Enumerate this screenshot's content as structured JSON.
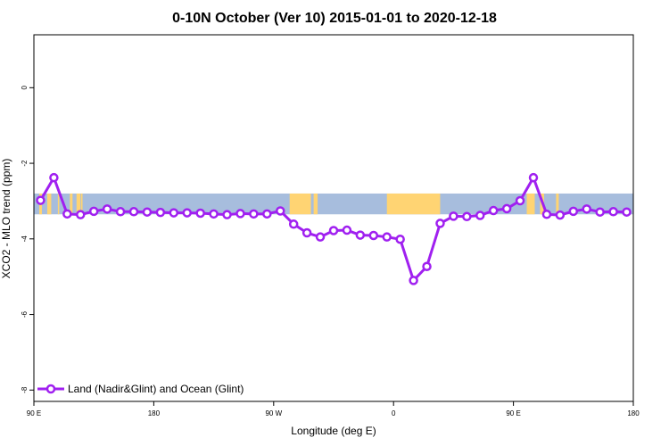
{
  "chart_data": {
    "type": "line",
    "title": "0-10N October (Ver 10)   2015-01-01 to 2020-12-18",
    "xlabel": "Longitude (deg E)",
    "ylabel": "XCO2 - MLO trend (ppm)",
    "xlim": [
      90,
      540
    ],
    "ylim": [
      -8.3,
      1.4
    ],
    "xticks": [
      {
        "value": 90,
        "label": "90 E"
      },
      {
        "value": 180,
        "label": "180"
      },
      {
        "value": 270,
        "label": "90 W"
      },
      {
        "value": 360,
        "label": "0"
      },
      {
        "value": 450,
        "label": "90 E"
      },
      {
        "value": 540,
        "label": "180"
      }
    ],
    "yticks": [
      0,
      -2,
      -4,
      -6,
      -8
    ],
    "grid": false,
    "legend_position": "bottom-left",
    "colors": {
      "series": "#a020f0",
      "land": "#ffd473",
      "ocean": "#a7bddd"
    },
    "map_strip": {
      "lat_range": "0-10N",
      "y_top": -2.8,
      "y_bottom": -3.35
    },
    "series": [
      {
        "name": "Land (Nadir&Glint) and Ocean (Glint)",
        "x": [
          95,
          105,
          115,
          125,
          135,
          145,
          155,
          165,
          175,
          185,
          195,
          205,
          215,
          225,
          235,
          245,
          255,
          265,
          275,
          285,
          295,
          305,
          315,
          325,
          335,
          345,
          355,
          365,
          375,
          385,
          395,
          405,
          415,
          425,
          435,
          445,
          455,
          465,
          475,
          485,
          495,
          505,
          515,
          525,
          535
        ],
        "y": [
          -2.98,
          -2.38,
          -3.34,
          -3.36,
          -3.27,
          -3.21,
          -3.28,
          -3.28,
          -3.29,
          -3.3,
          -3.31,
          -3.31,
          -3.32,
          -3.34,
          -3.36,
          -3.33,
          -3.34,
          -3.34,
          -3.26,
          -3.61,
          -3.84,
          -3.95,
          -3.78,
          -3.77,
          -3.9,
          -3.91,
          -3.95,
          -4.01,
          -5.1,
          -4.73,
          -3.59,
          -3.4,
          -3.41,
          -3.38,
          -3.25,
          -3.2,
          -2.99,
          -2.38,
          -3.35,
          -3.37,
          -3.27,
          -3.21,
          -3.29,
          -3.28,
          -3.29
        ]
      }
    ]
  }
}
